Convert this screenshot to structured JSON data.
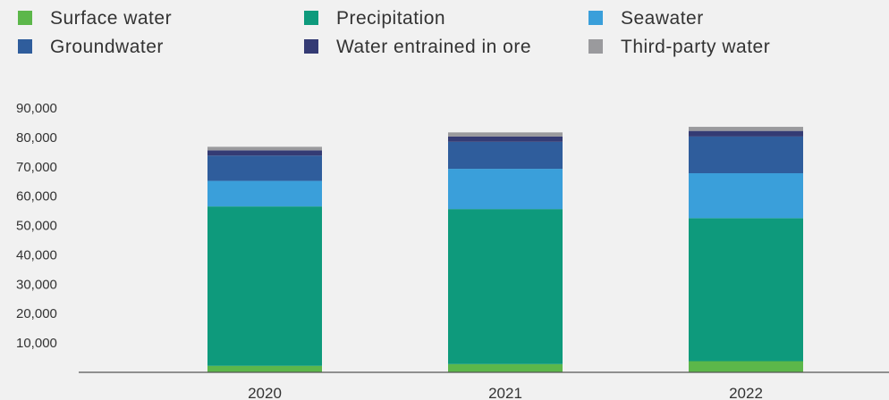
{
  "chart_data": {
    "type": "bar",
    "stacked": true,
    "categories": [
      "2020",
      "2021",
      "2022"
    ],
    "series": [
      {
        "name": "Surface water",
        "color": "#5cb74a",
        "values": [
          2200,
          2800,
          3800
        ]
      },
      {
        "name": "Precipitation",
        "color": "#0e9a7c",
        "values": [
          54300,
          52800,
          48700
        ]
      },
      {
        "name": "Seawater",
        "color": "#3a9fda",
        "values": [
          8700,
          13700,
          15300
        ]
      },
      {
        "name": "Groundwater",
        "color": "#2f5d9c",
        "values": [
          8600,
          9200,
          12500
        ]
      },
      {
        "name": "Water entrained in ore",
        "color": "#343b74",
        "values": [
          1800,
          1800,
          1900
        ]
      },
      {
        "name": "Third-party water",
        "color": "#9a9a9d",
        "values": [
          1200,
          1400,
          1400
        ]
      }
    ],
    "ylim": [
      0,
      90000
    ],
    "yticks": [
      "10,000",
      "20,000",
      "30,000",
      "40,000",
      "50,000",
      "60,000",
      "70,000",
      "80,000",
      "90,000"
    ],
    "ytick_values": [
      10000,
      20000,
      30000,
      40000,
      50000,
      60000,
      70000,
      80000,
      90000
    ],
    "grid": false,
    "legend_position": "top"
  }
}
